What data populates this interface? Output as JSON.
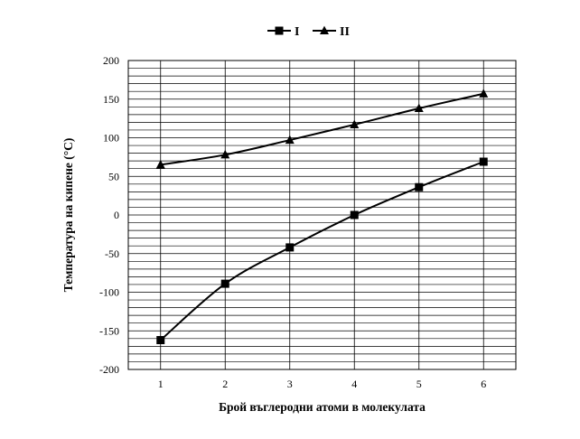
{
  "chart_data": {
    "type": "line",
    "title": "",
    "xlabel": "Брой въглеродни атоми в молекулата",
    "ylabel": "Температура на кипене (°C)",
    "x": [
      1,
      2,
      3,
      4,
      5,
      6
    ],
    "xlim": [
      0.5,
      6.5
    ],
    "ylim": [
      -200,
      200
    ],
    "y_major_ticks": [
      -200,
      -150,
      -100,
      -50,
      0,
      50,
      100,
      150,
      200
    ],
    "y_minor_step": 10,
    "grid": true,
    "legend_position": "top-center",
    "series": [
      {
        "name": "I",
        "marker": "square",
        "color": "#000000",
        "values": [
          -162,
          -89,
          -42,
          0,
          36,
          69
        ]
      },
      {
        "name": "II",
        "marker": "triangle",
        "color": "#000000",
        "values": [
          65,
          78,
          97,
          117,
          138,
          157
        ]
      }
    ]
  }
}
